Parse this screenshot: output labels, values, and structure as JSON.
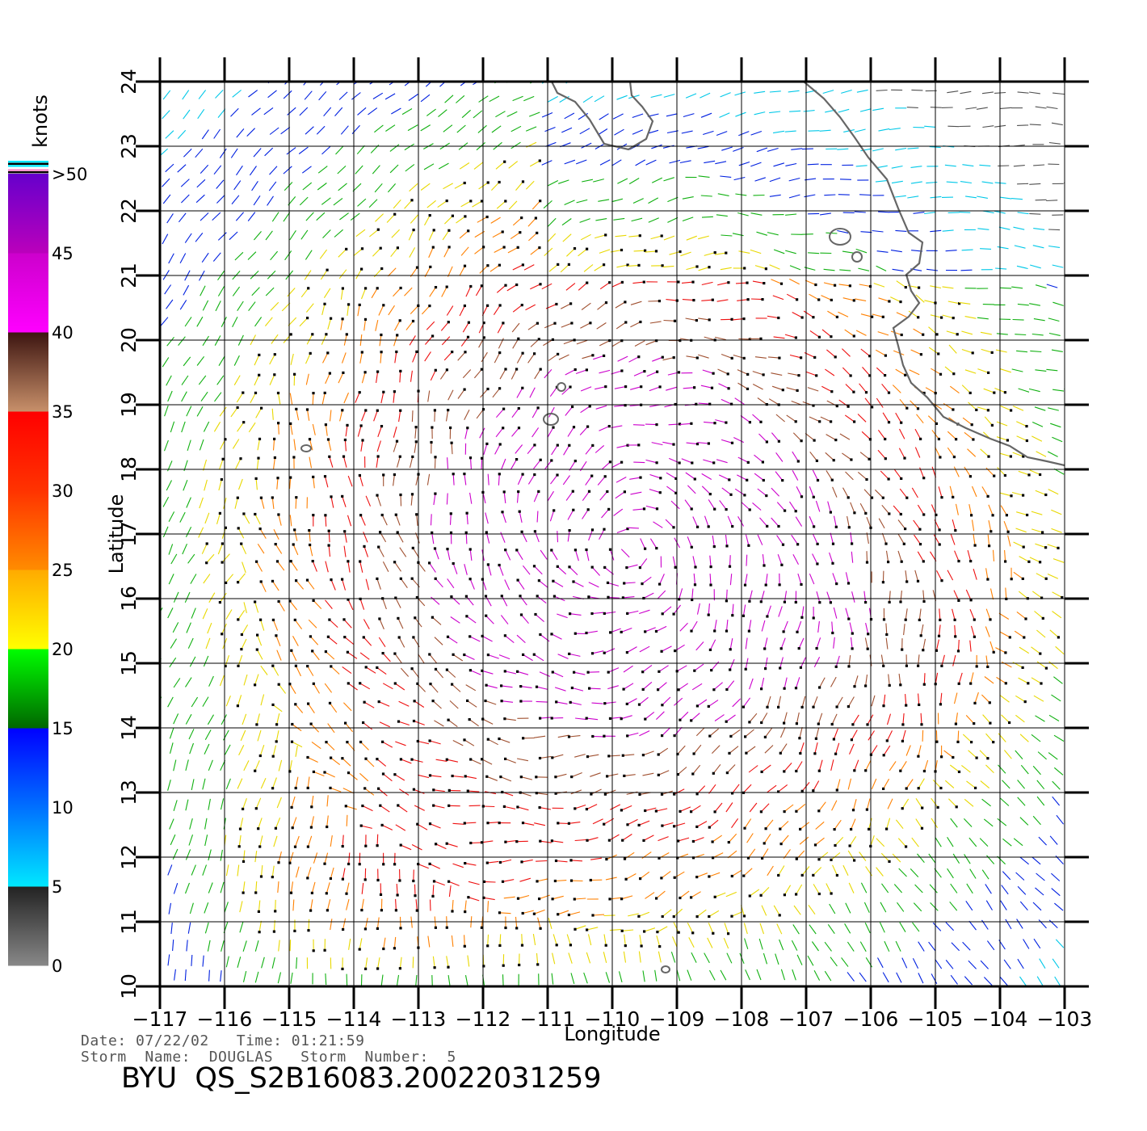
{
  "chart_data": {
    "type": "vector field",
    "xlabel": "Longitude",
    "ylabel": "Latitude",
    "xlim": [
      -117,
      -103
    ],
    "ylim": [
      10,
      24
    ],
    "x_ticks": [
      "−117",
      "−116",
      "−115",
      "−114",
      "−113",
      "−112",
      "−111",
      "−110",
      "−109",
      "−108",
      "−107",
      "−106",
      "−105",
      "−104",
      "−103"
    ],
    "y_ticks": [
      "10",
      "11",
      "12",
      "13",
      "14",
      "15",
      "16",
      "17",
      "18",
      "19",
      "20",
      "21",
      "22",
      "23",
      "24"
    ],
    "grid": true,
    "storm_center": {
      "lon": -109.8,
      "lat": 16.8
    },
    "colorbar": {
      "title": "knots",
      "labels": [
        "0",
        "5",
        "10",
        "15",
        "20",
        "25",
        "30",
        "35",
        "40",
        "45",
        ">50"
      ],
      "bands": [
        {
          "from": 0,
          "to": 5,
          "colors": [
            "#888888",
            "#222222"
          ]
        },
        {
          "from": 5,
          "to": 10,
          "colors": [
            "#00e8ff",
            "#0070ff"
          ]
        },
        {
          "from": 10,
          "to": 15,
          "colors": [
            "#0070ff",
            "#0000ff"
          ]
        },
        {
          "from": 15,
          "to": 20,
          "colors": [
            "#006600",
            "#00ff00"
          ]
        },
        {
          "from": 20,
          "to": 25,
          "colors": [
            "#ffff00",
            "#ffaa00"
          ]
        },
        {
          "from": 25,
          "to": 30,
          "colors": [
            "#ff8c00",
            "#ff3300"
          ]
        },
        {
          "from": 30,
          "to": 35,
          "colors": [
            "#ff3300",
            "#ff0000"
          ]
        },
        {
          "from": 35,
          "to": 40,
          "colors": [
            "#c8906a",
            "#3c1410"
          ]
        },
        {
          "from": 40,
          "to": 45,
          "colors": [
            "#ff00ff",
            "#cc00cc"
          ]
        },
        {
          "from": 45,
          "to": 50,
          "colors": [
            "#bb00bb",
            "#6600cc"
          ]
        }
      ]
    }
  },
  "info": {
    "line1": "Date: 07/22/02   Time: 01:21:59",
    "line2": "Storm  Name:  DOUGLAS   Storm  Number:  5"
  },
  "footer_title": "BYU  QS_S2B16083.20022031259"
}
